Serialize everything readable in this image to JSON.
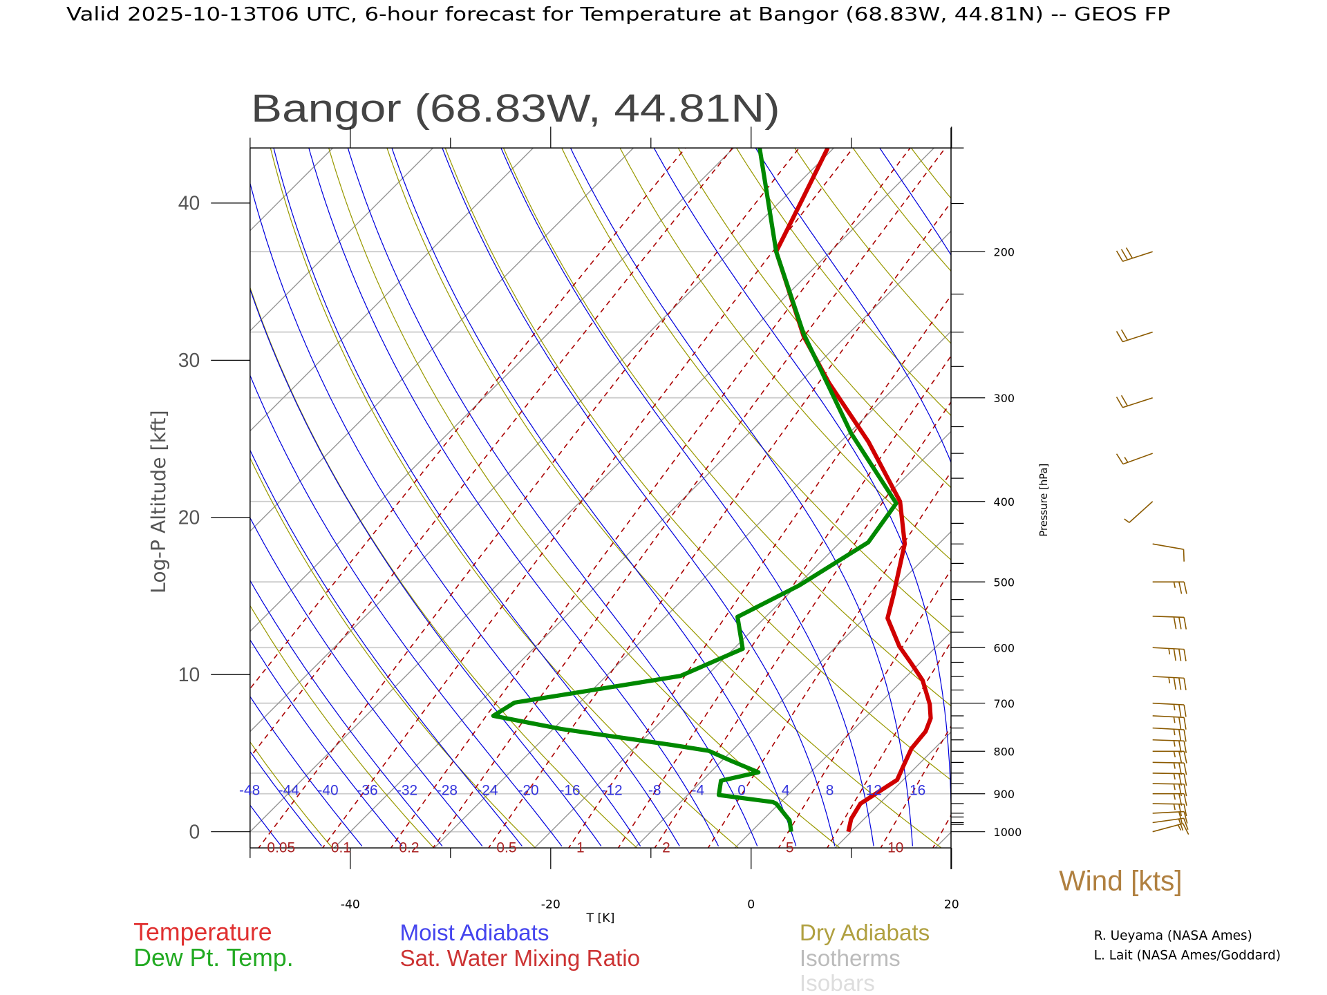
{
  "header": {
    "title": "Valid 2025-10-13T06 UTC, 6-hour forecast for Temperature at Bangor (68.83W, 44.81N) -- GEOS FP"
  },
  "plot": {
    "station_title": "Bangor (68.83W, 44.81N)",
    "left_axis_label": "Log-P Altitude [kft]",
    "right_axis_label": "Pressure [hPa]",
    "bottom_axis_label": "T [K]",
    "wind_label": "Wind [kts]"
  },
  "legend": {
    "temperature": "Temperature",
    "dewpoint": "Dew Pt. Temp.",
    "moist_adiabats": "Moist Adiabats",
    "mixing_ratio": "Sat. Water Mixing Ratio",
    "dry_adiabats": "Dry Adiabats",
    "isotherms": "Isotherms",
    "isobars": "Isobars"
  },
  "credits": [
    "R. Ueyama (NASA Ames)",
    "L. Lait (NASA Ames/Goddard)"
  ],
  "colors": {
    "temperature": "#d00000",
    "dewpoint": "#008800",
    "moist": "#0000dd",
    "mixing": "#aa0000",
    "dry": "#999900",
    "isotherm": "#999999",
    "isobar": "#cccccc",
    "wind": "#8b5a00"
  },
  "chart_data": {
    "type": "line",
    "subtype": "skew-T log-P",
    "title": "Bangor (68.83W, 44.81N)",
    "xlabel": "T [K]",
    "ylabel": "Log-P Altitude [kft]",
    "y2label": "Pressure [hPa]",
    "xlim_c": [
      -50,
      20
    ],
    "plim_hpa": [
      1046,
      150
    ],
    "x_ticks": [
      "-40",
      "-20",
      "0",
      "20"
    ],
    "x_tick_values": [
      -40,
      -20,
      0,
      20
    ],
    "alt_ticks": [
      "0",
      "10",
      "20",
      "30",
      "40"
    ],
    "alt_tick_values": [
      0,
      10,
      20,
      30,
      40
    ],
    "p_ticks": [
      "200",
      "300",
      "400",
      "500",
      "600",
      "700",
      "800",
      "900",
      "1000"
    ],
    "p_tick_values": [
      200,
      300,
      400,
      500,
      600,
      700,
      800,
      900,
      1000
    ],
    "moist_adiabat_labels": [
      "-48",
      "-44",
      "-40",
      "-36",
      "-32",
      "-28",
      "-24",
      "-20",
      "-16",
      "-12",
      "-8",
      "-4",
      "0",
      "4",
      "8",
      "12",
      "16"
    ],
    "moist_adiabat_values": [
      -48,
      -44,
      -40,
      -36,
      -32,
      -28,
      -24,
      -20,
      -16,
      -12,
      -8,
      -4,
      0,
      4,
      8,
      12,
      16
    ],
    "mixing_ratio_labels": [
      "0.05",
      "0.1",
      "0.2",
      "0.5",
      "1",
      "2",
      "5",
      "10"
    ],
    "mixing_ratio_values": [
      0.05,
      0.1,
      0.2,
      0.5,
      1,
      2,
      5,
      10
    ],
    "series": [
      {
        "name": "Temperature",
        "p": [
          1000,
          965,
          925,
          893,
          866,
          832,
          794,
          757,
          730,
          702,
          657,
          627,
          598,
          553,
          519,
          450,
          400,
          339,
          288,
          253,
          200,
          175,
          150
        ],
        "t": [
          9.7,
          8.7,
          8.1,
          8.8,
          9.4,
          8.6,
          7.7,
          7.4,
          6.6,
          5.1,
          2.0,
          -0.8,
          -3.7,
          -7.7,
          -9.4,
          -13.4,
          -18.1,
          -27.2,
          -37.0,
          -44.2,
          -55.4,
          -57.8,
          -60.6
        ]
      },
      {
        "name": "Dew Pt. Temp.",
        "p": [
          1000,
          969,
          925,
          921,
          903,
          868,
          848,
          822,
          799,
          786,
          752,
          725,
          699,
          649,
          602,
          551,
          505,
          448,
          402,
          331,
          251,
          200,
          150
        ],
        "t": [
          4.0,
          2.7,
          -0.3,
          -0.8,
          -6.9,
          -8.1,
          -5.2,
          -9.0,
          -12.3,
          -16.6,
          -29.2,
          -37.3,
          -36.5,
          -22.6,
          -19.1,
          -22.8,
          -19.8,
          -17.2,
          -18.3,
          -29.8,
          -44.5,
          -55.4,
          -67.4
        ]
      }
    ],
    "winds": [
      {
        "p": 200,
        "dir": 252,
        "kts": 30
      },
      {
        "p": 250,
        "dir": 252,
        "kts": 20
      },
      {
        "p": 300,
        "dir": 252,
        "kts": 20
      },
      {
        "p": 350,
        "dir": 250,
        "kts": 15
      },
      {
        "p": 400,
        "dir": 228,
        "kts": 5
      },
      {
        "p": 450,
        "dir": 100,
        "kts": 10
      },
      {
        "p": 500,
        "dir": 90,
        "kts": 25
      },
      {
        "p": 550,
        "dir": 92,
        "kts": 30
      },
      {
        "p": 600,
        "dir": 93,
        "kts": 35
      },
      {
        "p": 650,
        "dir": 93,
        "kts": 35
      },
      {
        "p": 700,
        "dir": 93,
        "kts": 25
      },
      {
        "p": 725,
        "dir": 93,
        "kts": 25
      },
      {
        "p": 750,
        "dir": 93,
        "kts": 25
      },
      {
        "p": 775,
        "dir": 92,
        "kts": 25
      },
      {
        "p": 800,
        "dir": 90,
        "kts": 25
      },
      {
        "p": 825,
        "dir": 91,
        "kts": 25
      },
      {
        "p": 850,
        "dir": 91,
        "kts": 25
      },
      {
        "p": 875,
        "dir": 91,
        "kts": 25
      },
      {
        "p": 900,
        "dir": 90,
        "kts": 25
      },
      {
        "p": 925,
        "dir": 91,
        "kts": 25
      },
      {
        "p": 950,
        "dir": 87,
        "kts": 20
      },
      {
        "p": 975,
        "dir": 82,
        "kts": 20
      },
      {
        "p": 1000,
        "dir": 75,
        "kts": 15
      }
    ]
  }
}
